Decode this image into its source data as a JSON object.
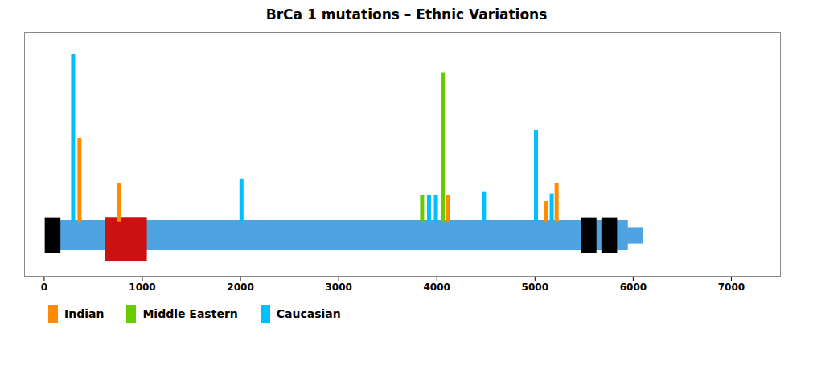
{
  "chart_data": {
    "type": "bar",
    "title": "BrCa 1 mutations – Ethnic Variations",
    "xlim": [
      -200,
      7500
    ],
    "ylim": [
      -1.0,
      3.5
    ],
    "xticks": [
      0,
      1000,
      2000,
      3000,
      4000,
      5000,
      6000,
      7000
    ],
    "tick_labels": "x",
    "gene_segments": [
      {
        "x1": 50,
        "x2": 5950,
        "y1": -0.525,
        "y2": 0.025,
        "color": "#4FA3E0"
      },
      {
        "x1": 5850,
        "x2": 6100,
        "y1": -0.4,
        "y2": -0.1,
        "color": "#4FA3E0"
      },
      {
        "x1": 620,
        "x2": 1050,
        "y1": -0.72,
        "y2": 0.08,
        "color": "#CC1111"
      },
      {
        "x1": 10,
        "x2": 170,
        "y1": -0.575,
        "y2": 0.075,
        "color": "#000000"
      },
      {
        "x1": 5470,
        "x2": 5630,
        "y1": -0.575,
        "y2": 0.075,
        "color": "#000000"
      },
      {
        "x1": 5680,
        "x2": 5840,
        "y1": -0.575,
        "y2": 0.075,
        "color": "#000000"
      }
    ],
    "series": [
      {
        "name": "Indian",
        "color": "#FF8C00",
        "x": [
          360,
          760,
          4110,
          5110,
          5220
        ],
        "values": [
          1.55,
          0.72,
          0.5,
          0.38,
          0.72
        ]
      },
      {
        "name": "Middle Eastern",
        "color": "#66CC00",
        "x": [
          3850,
          4060
        ],
        "values": [
          0.5,
          2.75
        ]
      },
      {
        "name": "Caucasian",
        "color": "#00BFFF",
        "x": [
          295,
          2010,
          3920,
          3990,
          4480,
          5010,
          5170
        ],
        "values": [
          3.1,
          0.8,
          0.5,
          0.5,
          0.55,
          1.7,
          0.52
        ]
      }
    ]
  }
}
